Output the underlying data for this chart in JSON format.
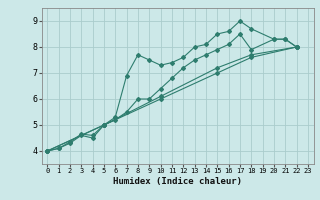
{
  "xlabel": "Humidex (Indice chaleur)",
  "bg_color": "#cce8e8",
  "grid_color": "#aacccc",
  "line_color": "#2e7d6e",
  "xlim": [
    -0.5,
    23.5
  ],
  "ylim": [
    3.5,
    9.5
  ],
  "xticks": [
    0,
    1,
    2,
    3,
    4,
    5,
    6,
    7,
    8,
    9,
    10,
    11,
    12,
    13,
    14,
    15,
    16,
    17,
    18,
    19,
    20,
    21,
    22,
    23
  ],
  "yticks": [
    4,
    5,
    6,
    7,
    8,
    9
  ],
  "series": [
    [
      [
        0,
        4.0
      ],
      [
        1,
        4.1
      ],
      [
        2,
        4.3
      ],
      [
        3,
        4.6
      ],
      [
        4,
        4.5
      ],
      [
        5,
        5.0
      ],
      [
        6,
        5.3
      ],
      [
        7,
        6.9
      ],
      [
        8,
        7.7
      ],
      [
        9,
        7.5
      ],
      [
        10,
        7.3
      ],
      [
        11,
        7.4
      ],
      [
        12,
        7.6
      ],
      [
        13,
        8.0
      ],
      [
        14,
        8.1
      ],
      [
        15,
        8.5
      ],
      [
        16,
        8.6
      ],
      [
        17,
        9.0
      ],
      [
        18,
        8.7
      ],
      [
        20,
        8.3
      ],
      [
        21,
        8.3
      ],
      [
        22,
        8.0
      ]
    ],
    [
      [
        0,
        4.0
      ],
      [
        1,
        4.1
      ],
      [
        2,
        4.35
      ],
      [
        3,
        4.65
      ],
      [
        4,
        4.6
      ],
      [
        5,
        5.0
      ],
      [
        6,
        5.2
      ],
      [
        7,
        5.5
      ],
      [
        8,
        6.0
      ],
      [
        9,
        6.0
      ],
      [
        10,
        6.4
      ],
      [
        11,
        6.8
      ],
      [
        12,
        7.2
      ],
      [
        13,
        7.5
      ],
      [
        14,
        7.7
      ],
      [
        15,
        7.9
      ],
      [
        16,
        8.1
      ],
      [
        17,
        8.5
      ],
      [
        18,
        7.9
      ],
      [
        20,
        8.3
      ],
      [
        21,
        8.3
      ],
      [
        22,
        8.0
      ]
    ],
    [
      [
        0,
        4.0
      ],
      [
        5,
        5.0
      ],
      [
        10,
        6.0
      ],
      [
        15,
        7.0
      ],
      [
        18,
        7.6
      ],
      [
        22,
        8.0
      ]
    ],
    [
      [
        0,
        4.0
      ],
      [
        5,
        5.0
      ],
      [
        10,
        6.1
      ],
      [
        15,
        7.2
      ],
      [
        18,
        7.7
      ],
      [
        22,
        8.0
      ]
    ]
  ]
}
